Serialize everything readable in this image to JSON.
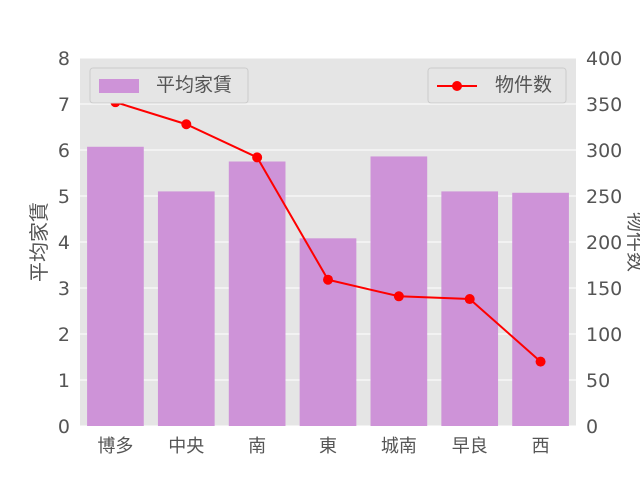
{
  "chart_data": {
    "type": "bar",
    "categories": [
      "博多",
      "中央",
      "南",
      "東",
      "城南",
      "早良",
      "西"
    ],
    "series": [
      {
        "name": "平均家賃",
        "type": "bar",
        "axis": "left",
        "color": "#ce93d8",
        "values": [
          6.07,
          5.1,
          5.75,
          4.08,
          5.86,
          5.1,
          5.07
        ]
      },
      {
        "name": "物件数",
        "type": "line",
        "axis": "right",
        "color": "#ff0000",
        "values": [
          352,
          328,
          292,
          159,
          141,
          138,
          70
        ]
      }
    ],
    "ylabel": "平均家賃",
    "y2label": "物件数",
    "ylim": [
      0,
      8
    ],
    "y2lim": [
      0,
      400
    ],
    "yticks": [
      "0",
      "1",
      "2",
      "3",
      "4",
      "5",
      "6",
      "7",
      "8"
    ],
    "y2ticks": [
      "0",
      "50",
      "100",
      "150",
      "200",
      "250",
      "300",
      "350",
      "400"
    ],
    "grid": true,
    "legends": [
      "top-left",
      "top-right"
    ],
    "colors": {
      "plot_background": "#e5e5e5",
      "grid": "#ffffff",
      "text": "#555555"
    }
  }
}
